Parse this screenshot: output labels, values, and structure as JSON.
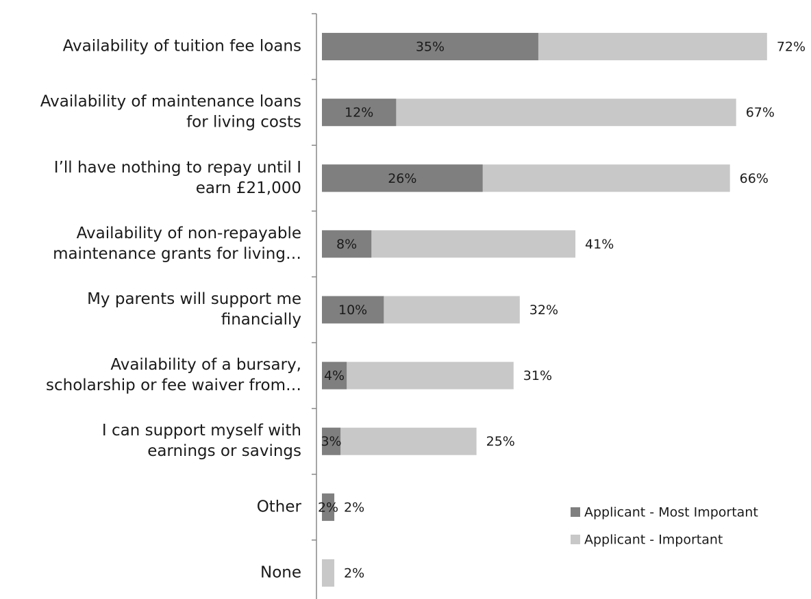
{
  "chart_data": {
    "type": "bar",
    "orientation": "horizontal",
    "categories": [
      [
        "Availability of tuition fee loans"
      ],
      [
        "Availability of maintenance loans",
        "for living costs"
      ],
      [
        "I’ll have nothing to repay until I",
        "earn £21,000"
      ],
      [
        "Availability of non-repayable",
        "maintenance grants for living…"
      ],
      [
        "My parents will support me",
        "financially"
      ],
      [
        "Availability of a bursary,",
        "scholarship or fee waiver from…"
      ],
      [
        "I can support myself with",
        "earnings or savings"
      ],
      [
        "Other"
      ],
      [
        "None"
      ]
    ],
    "series": [
      {
        "name": "Applicant - Important",
        "color": "#c8c8c8",
        "values": [
          72,
          67,
          66,
          41,
          32,
          31,
          25,
          2,
          2
        ],
        "value_labels": [
          "72%",
          "67%",
          "66%",
          "41%",
          "32%",
          "31%",
          "25%",
          "2%",
          "2%"
        ]
      },
      {
        "name": "Applicant - Most Important",
        "color": "#7f7f7f",
        "values": [
          35,
          12,
          26,
          8,
          10,
          4,
          3,
          2,
          null
        ],
        "value_labels": [
          "35%",
          "12%",
          "26%",
          "8%",
          "10%",
          "4%",
          "3%",
          "2%",
          null
        ]
      }
    ],
    "xlim": [
      0,
      79
    ],
    "legend": "lower right"
  }
}
